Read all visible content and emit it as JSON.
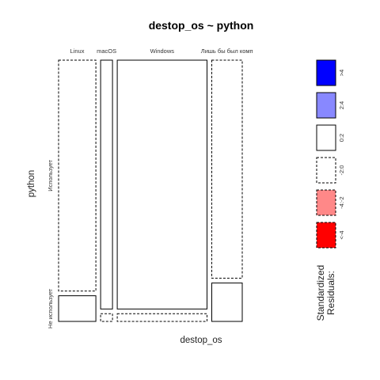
{
  "chart_data": {
    "type": "mosaic",
    "title": "destop_os ~ python",
    "xlabel": "destop_os",
    "ylabel": "python",
    "x_categories": [
      "Linux",
      "macOS",
      "Windows",
      "Лишь бы был комп"
    ],
    "y_categories": [
      "Использует",
      "Не использует"
    ],
    "column_shares": [
      0.22,
      0.07,
      0.53,
      0.18
    ],
    "row_shares": {
      "Linux": [
        0.9,
        0.1
      ],
      "macOS": [
        0.97,
        0.03
      ],
      "Windows": [
        0.97,
        0.03
      ],
      "Лишь бы был комп": [
        0.85,
        0.15
      ]
    },
    "residual_class": {
      "Linux": [
        "-2:0",
        "0:2"
      ],
      "macOS": [
        "0:2",
        "-2:0"
      ],
      "Windows": [
        "0:2",
        "-2:0"
      ],
      "Лишь бы был комп": [
        "-2:0",
        "0:2"
      ]
    },
    "legend": {
      "title_line1": "Standardized",
      "title_line2": "Residuals:",
      "placement": "right",
      "entries": [
        {
          "label": ">4",
          "fill": "#0000FF",
          "dashed": false
        },
        {
          "label": "2:4",
          "fill": "#8888FF",
          "dashed": false
        },
        {
          "label": "0:2",
          "fill": "#FFFFFF",
          "dashed": false
        },
        {
          "label": "-2:0",
          "fill": "#FFFFFF",
          "dashed": true
        },
        {
          "label": "-4:-2",
          "fill": "#FF8888",
          "dashed": true
        },
        {
          "label": "<-4",
          "fill": "#FF0000",
          "dashed": true
        }
      ]
    }
  }
}
